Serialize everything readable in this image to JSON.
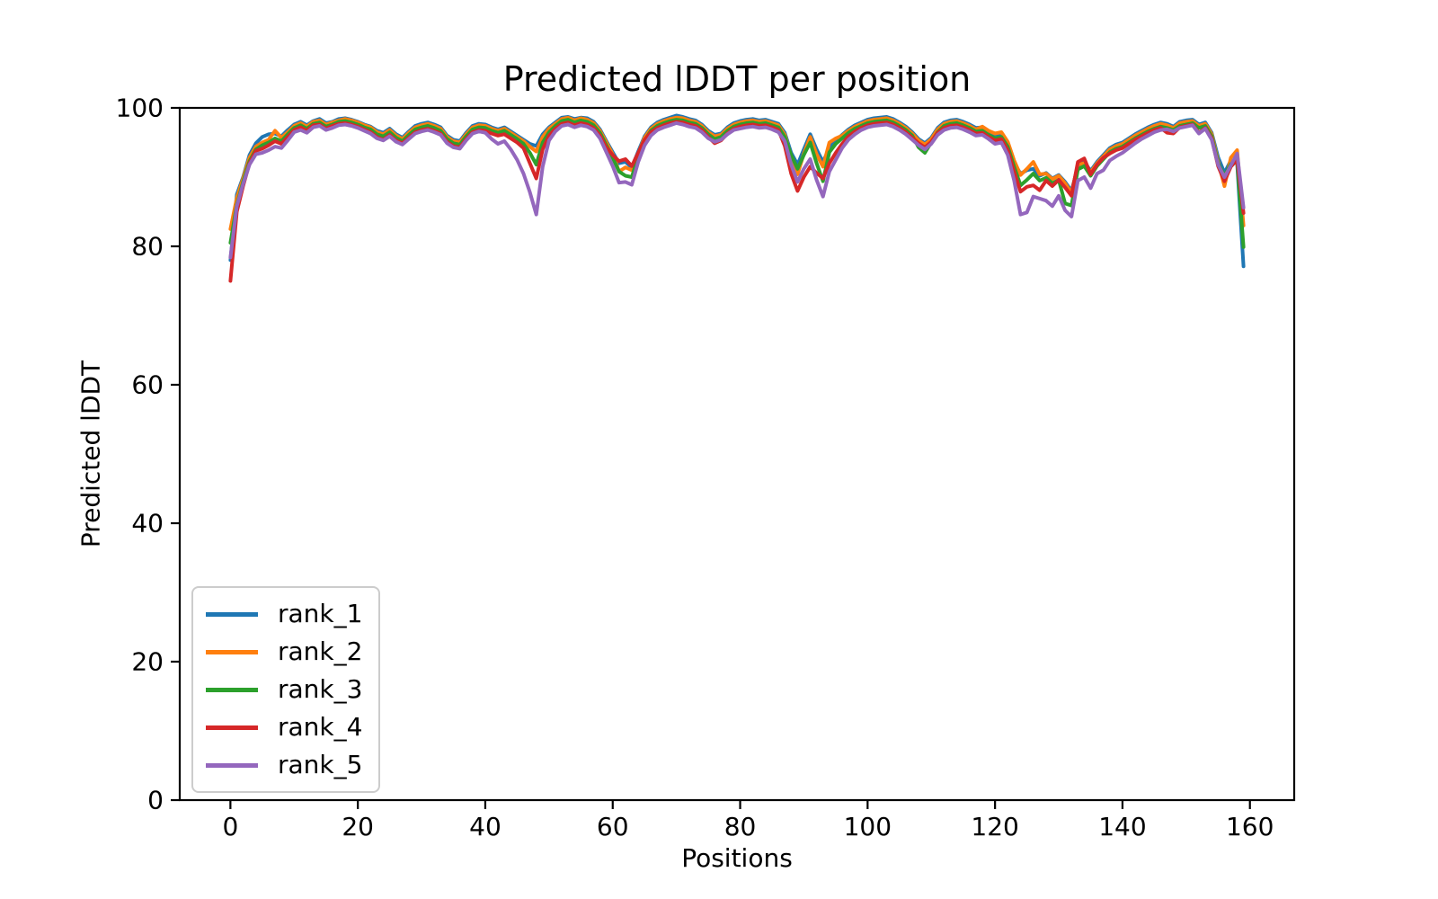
{
  "chart_data": {
    "type": "line",
    "title": "Predicted lDDT per position",
    "xlabel": "Positions",
    "ylabel": "Predicted lDDT",
    "x_description": "position index 0-159 (one value per residue position)",
    "xlim": [
      -7.95,
      166.95
    ],
    "ylim": [
      0,
      100
    ],
    "xticks": [
      0,
      20,
      40,
      60,
      80,
      100,
      120,
      140,
      160
    ],
    "yticks": [
      0,
      20,
      40,
      60,
      80,
      100
    ],
    "grid": false,
    "legend_position": "lower left",
    "background": "#ffffff",
    "series": [
      {
        "name": "rank_1",
        "color": "#1f77b4",
        "values": [
          78.0,
          87.5,
          90.0,
          93.2,
          94.9,
          95.8,
          96.2,
          96.3,
          95.9,
          96.8,
          97.6,
          98.0,
          97.5,
          98.1,
          98.4,
          97.8,
          98.0,
          98.4,
          98.5,
          98.3,
          98.0,
          97.6,
          97.3,
          96.7,
          96.4,
          97.0,
          96.2,
          95.7,
          96.6,
          97.4,
          97.7,
          97.9,
          97.6,
          97.2,
          96.0,
          95.4,
          95.2,
          96.4,
          97.4,
          97.7,
          97.6,
          97.2,
          96.9,
          97.2,
          96.6,
          96.0,
          95.4,
          94.8,
          94.5,
          96.2,
          97.2,
          97.9,
          98.6,
          98.7,
          98.4,
          98.6,
          98.5,
          98.0,
          96.9,
          95.2,
          93.6,
          92.0,
          92.2,
          91.4,
          93.7,
          95.9,
          97.2,
          97.9,
          98.3,
          98.6,
          98.9,
          98.7,
          98.4,
          98.2,
          97.6,
          96.7,
          96.1,
          96.3,
          97.2,
          97.8,
          98.1,
          98.3,
          98.4,
          98.2,
          98.3,
          98.0,
          97.7,
          96.4,
          93.5,
          91.8,
          94.0,
          96.2,
          94.0,
          92.2,
          94.2,
          95.3,
          96.1,
          96.9,
          97.5,
          97.9,
          98.3,
          98.5,
          98.6,
          98.7,
          98.4,
          97.9,
          97.3,
          96.5,
          95.5,
          94.9,
          95.7,
          97.1,
          97.9,
          98.2,
          98.3,
          98.0,
          97.6,
          97.1,
          97.2,
          96.6,
          96.1,
          96.3,
          94.9,
          92.0,
          90.5,
          91.0,
          91.2,
          90.2,
          90.6,
          89.8,
          90.3,
          89.3,
          88.0,
          91.5,
          92.2,
          90.9,
          92.2,
          93.2,
          94.2,
          94.7,
          95.0,
          95.6,
          96.2,
          96.7,
          97.2,
          97.6,
          97.9,
          97.7,
          97.3,
          98.0,
          98.2,
          98.3,
          97.6,
          97.9,
          96.4,
          92.9,
          90.6,
          92.4,
          92.0,
          77.1
        ]
      },
      {
        "name": "rank_2",
        "color": "#ff7f0e",
        "values": [
          82.5,
          87.0,
          89.8,
          92.8,
          94.4,
          95.0,
          95.4,
          96.7,
          95.7,
          96.5,
          97.4,
          97.8,
          97.3,
          98.0,
          98.2,
          97.6,
          97.9,
          98.2,
          98.4,
          98.2,
          97.9,
          97.5,
          97.2,
          96.5,
          96.2,
          96.8,
          96.0,
          95.5,
          96.4,
          97.2,
          97.5,
          97.7,
          97.4,
          97.0,
          95.8,
          95.2,
          95.0,
          96.2,
          97.2,
          97.5,
          97.4,
          97.0,
          96.7,
          97.0,
          96.4,
          95.8,
          95.2,
          94.4,
          93.7,
          95.8,
          97.0,
          97.7,
          98.4,
          98.6,
          98.2,
          98.5,
          98.3,
          97.8,
          96.7,
          95.0,
          93.3,
          90.8,
          91.4,
          91.0,
          93.4,
          95.7,
          97.0,
          97.7,
          98.1,
          98.4,
          98.6,
          98.5,
          98.2,
          98.0,
          97.4,
          96.5,
          95.9,
          96.1,
          97.0,
          97.6,
          97.9,
          98.1,
          98.2,
          98.0,
          98.1,
          97.8,
          97.5,
          96.1,
          93.0,
          90.4,
          93.4,
          95.8,
          93.3,
          91.5,
          95.0,
          95.6,
          96.0,
          96.7,
          97.3,
          97.7,
          98.1,
          98.3,
          98.4,
          98.5,
          98.2,
          97.7,
          97.1,
          96.3,
          95.3,
          94.7,
          95.5,
          96.9,
          97.7,
          98.0,
          98.1,
          97.8,
          97.4,
          96.9,
          97.3,
          96.7,
          96.3,
          96.5,
          95.1,
          92.4,
          90.3,
          91.2,
          92.2,
          90.4,
          90.5,
          89.7,
          90.2,
          89.1,
          87.7,
          91.8,
          92.0,
          90.7,
          92.0,
          93.0,
          94.0,
          94.5,
          94.8,
          95.4,
          96.0,
          96.5,
          97.0,
          97.4,
          97.7,
          97.5,
          97.1,
          97.8,
          98.0,
          98.1,
          97.4,
          97.7,
          96.2,
          92.3,
          88.7,
          92.8,
          93.9,
          83.0
        ]
      },
      {
        "name": "rank_3",
        "color": "#2ca02c",
        "values": [
          80.5,
          86.0,
          89.3,
          92.3,
          94.0,
          94.6,
          95.0,
          95.6,
          95.2,
          96.2,
          97.1,
          97.5,
          97.0,
          97.7,
          97.9,
          97.3,
          97.6,
          98.0,
          98.1,
          97.9,
          97.6,
          97.2,
          96.9,
          96.2,
          95.9,
          96.5,
          95.7,
          95.2,
          96.1,
          96.9,
          97.2,
          97.4,
          97.1,
          96.7,
          95.5,
          94.9,
          94.7,
          95.9,
          96.9,
          97.2,
          97.1,
          96.7,
          96.4,
          96.7,
          96.1,
          95.5,
          94.8,
          93.5,
          91.8,
          95.0,
          96.5,
          97.4,
          98.1,
          98.3,
          97.9,
          98.2,
          98.0,
          97.5,
          96.4,
          94.6,
          92.8,
          90.8,
          90.2,
          90.0,
          93.0,
          95.3,
          96.7,
          97.4,
          97.8,
          98.1,
          98.3,
          98.2,
          97.9,
          97.7,
          97.1,
          96.2,
          95.5,
          95.8,
          96.7,
          97.3,
          97.6,
          97.8,
          97.9,
          97.7,
          97.8,
          97.5,
          97.2,
          95.8,
          93.2,
          91.2,
          93.2,
          95.0,
          92.0,
          89.4,
          93.6,
          94.8,
          95.6,
          96.4,
          97.0,
          97.4,
          97.8,
          98.0,
          98.1,
          98.2,
          97.9,
          97.4,
          96.8,
          96.0,
          94.3,
          93.5,
          95.0,
          96.5,
          97.4,
          97.7,
          97.8,
          97.5,
          97.1,
          96.6,
          96.7,
          96.1,
          95.6,
          95.8,
          94.4,
          91.5,
          88.8,
          89.6,
          90.5,
          89.5,
          89.9,
          89.1,
          89.6,
          86.2,
          85.9,
          91.1,
          91.6,
          90.2,
          91.6,
          92.6,
          93.6,
          94.1,
          94.4,
          95.0,
          95.6,
          96.1,
          96.6,
          97.0,
          97.3,
          97.1,
          96.8,
          97.4,
          97.6,
          97.8,
          97.1,
          97.4,
          95.9,
          92.0,
          90.2,
          91.9,
          92.3,
          79.9
        ]
      },
      {
        "name": "rank_4",
        "color": "#d62728",
        "values": [
          75.0,
          85.0,
          88.7,
          92.0,
          93.8,
          94.1,
          94.6,
          95.2,
          94.8,
          95.8,
          96.8,
          97.2,
          96.7,
          97.5,
          97.6,
          97.0,
          97.4,
          97.7,
          97.8,
          97.6,
          97.3,
          96.9,
          96.5,
          95.8,
          95.4,
          96.1,
          95.3,
          94.9,
          95.7,
          96.5,
          96.8,
          97.0,
          96.7,
          96.3,
          95.1,
          94.5,
          94.3,
          95.5,
          96.5,
          96.8,
          96.7,
          96.3,
          96.0,
          96.2,
          95.6,
          95.0,
          94.2,
          92.0,
          89.8,
          94.0,
          96.0,
          97.0,
          97.7,
          97.9,
          97.5,
          97.8,
          97.6,
          97.1,
          96.0,
          94.3,
          93.2,
          92.3,
          92.6,
          91.6,
          93.5,
          95.4,
          96.5,
          97.1,
          97.5,
          97.8,
          98.0,
          97.9,
          97.6,
          97.4,
          96.8,
          95.8,
          94.9,
          95.3,
          96.3,
          97.0,
          97.3,
          97.5,
          97.6,
          97.4,
          97.5,
          97.2,
          96.8,
          94.5,
          90.5,
          88.0,
          90.0,
          91.5,
          90.6,
          89.8,
          92.0,
          93.5,
          94.8,
          95.9,
          96.6,
          97.1,
          97.5,
          97.7,
          97.8,
          97.9,
          97.6,
          97.1,
          96.5,
          95.7,
          94.9,
          94.3,
          95.1,
          96.4,
          97.1,
          97.4,
          97.5,
          97.2,
          96.8,
          96.3,
          96.4,
          95.8,
          95.3,
          95.5,
          93.9,
          90.8,
          87.9,
          88.6,
          88.8,
          88.1,
          89.5,
          88.7,
          89.6,
          88.5,
          87.3,
          92.2,
          92.7,
          90.4,
          91.8,
          92.8,
          93.4,
          93.9,
          94.2,
          94.8,
          95.4,
          95.9,
          96.4,
          96.8,
          97.1,
          96.4,
          96.3,
          97.2,
          97.4,
          97.6,
          96.4,
          97.1,
          95.6,
          91.6,
          89.4,
          91.5,
          92.5,
          84.8
        ]
      },
      {
        "name": "rank_5",
        "color": "#9467bd",
        "values": [
          78.4,
          85.8,
          89.0,
          91.8,
          93.3,
          93.5,
          93.9,
          94.4,
          94.2,
          95.3,
          96.5,
          96.8,
          96.4,
          97.2,
          97.4,
          96.8,
          97.1,
          97.5,
          97.6,
          97.4,
          97.1,
          96.7,
          96.3,
          95.6,
          95.3,
          95.9,
          95.1,
          94.7,
          95.5,
          96.3,
          96.6,
          96.8,
          96.5,
          96.1,
          94.9,
          94.3,
          94.1,
          95.3,
          96.3,
          96.6,
          96.4,
          95.5,
          94.8,
          95.2,
          94.0,
          92.5,
          90.5,
          87.8,
          84.6,
          91.5,
          95.3,
          96.6,
          97.4,
          97.6,
          97.2,
          97.5,
          97.3,
          96.8,
          95.6,
          93.6,
          91.6,
          89.2,
          89.3,
          88.9,
          92.2,
          94.6,
          96.0,
          96.8,
          97.2,
          97.5,
          97.8,
          97.6,
          97.3,
          97.1,
          96.5,
          95.6,
          95.1,
          95.4,
          96.2,
          96.8,
          97.0,
          97.2,
          97.3,
          97.1,
          97.2,
          96.9,
          96.5,
          95.2,
          91.8,
          89.3,
          91.2,
          92.6,
          89.6,
          87.2,
          90.8,
          92.5,
          94.2,
          95.4,
          96.2,
          96.8,
          97.2,
          97.4,
          97.5,
          97.6,
          97.3,
          96.8,
          96.2,
          95.4,
          94.6,
          94.0,
          94.8,
          96.1,
          96.8,
          97.1,
          97.2,
          96.9,
          96.5,
          96.0,
          96.1,
          95.5,
          94.8,
          95.0,
          93.2,
          89.5,
          84.6,
          84.9,
          87.2,
          86.9,
          86.6,
          85.8,
          87.3,
          85.2,
          84.3,
          89.5,
          90.0,
          88.4,
          90.5,
          91.0,
          92.4,
          93.0,
          93.5,
          94.2,
          94.9,
          95.5,
          96.0,
          96.5,
          96.8,
          96.9,
          96.6,
          97.1,
          97.3,
          97.5,
          96.3,
          97.0,
          95.4,
          91.8,
          90.0,
          91.7,
          93.4,
          85.6
        ]
      }
    ]
  }
}
